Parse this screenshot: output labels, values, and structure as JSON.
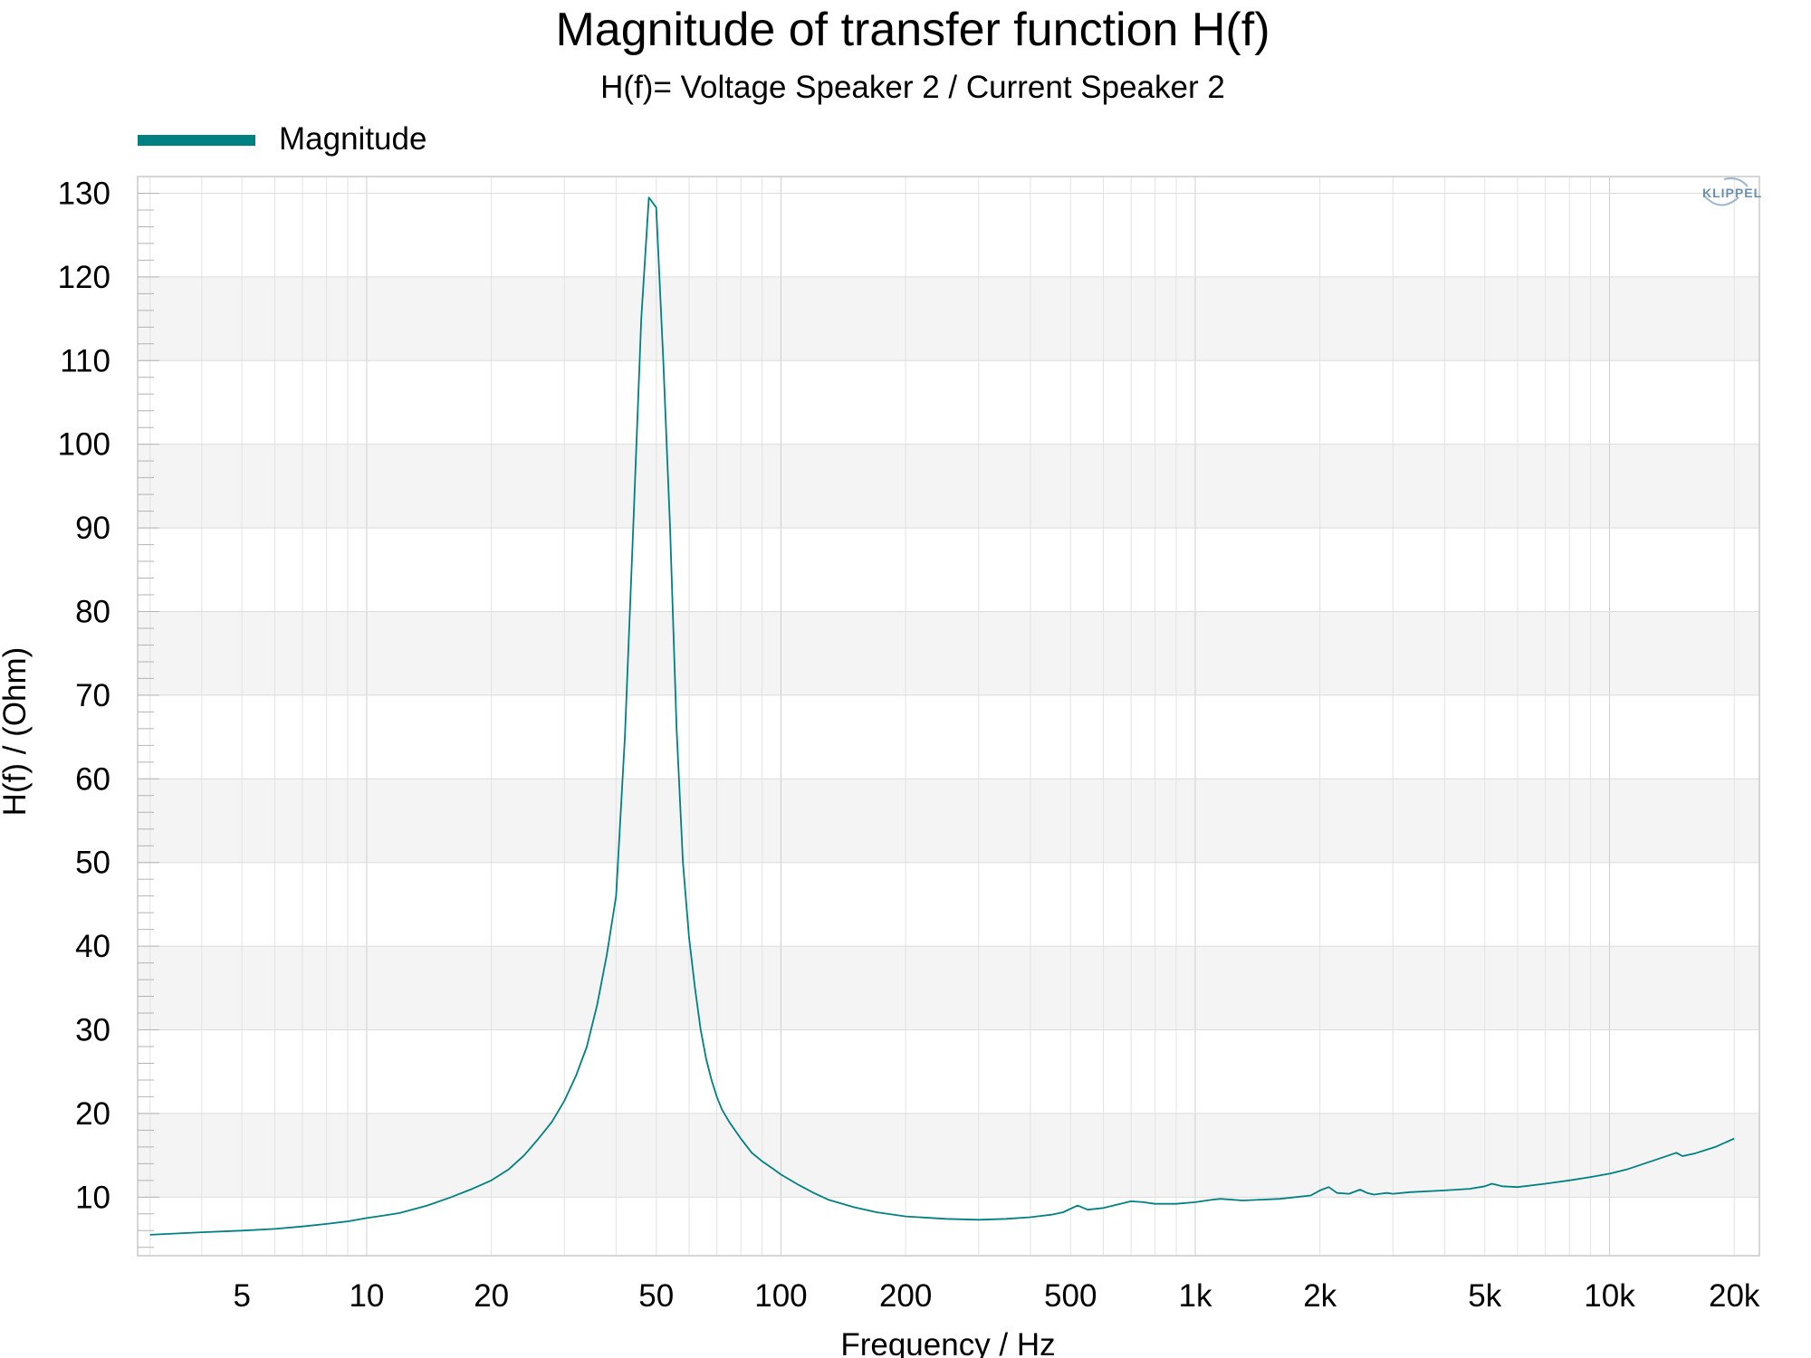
{
  "chart_data": {
    "type": "line",
    "title": "Magnitude of transfer function H(f)",
    "subtitle": "H(f)= Voltage Speaker 2 / Current Speaker 2",
    "xlabel": "Frequency / Hz",
    "ylabel": "H(f) / (Ohm)",
    "x_scale": "log",
    "xlim": [
      2.8,
      23000
    ],
    "ylim": [
      3,
      132
    ],
    "grid": true,
    "legend_position": "top-left",
    "x_ticks": [
      {
        "value": 5,
        "label": "5"
      },
      {
        "value": 10,
        "label": "10"
      },
      {
        "value": 20,
        "label": "20"
      },
      {
        "value": 50,
        "label": "50"
      },
      {
        "value": 100,
        "label": "100"
      },
      {
        "value": 200,
        "label": "200"
      },
      {
        "value": 500,
        "label": "500"
      },
      {
        "value": 1000,
        "label": "1k"
      },
      {
        "value": 2000,
        "label": "2k"
      },
      {
        "value": 5000,
        "label": "5k"
      },
      {
        "value": 10000,
        "label": "10k"
      },
      {
        "value": 20000,
        "label": "20k"
      }
    ],
    "y_ticks": [
      10,
      20,
      30,
      40,
      50,
      60,
      70,
      80,
      90,
      100,
      110,
      120,
      130
    ],
    "series": [
      {
        "name": "Magnitude",
        "color": "#008080",
        "x": [
          3,
          4,
          5,
          6,
          7,
          8,
          9,
          10,
          11,
          12,
          14,
          16,
          18,
          20,
          22,
          24,
          26,
          28,
          30,
          32,
          34,
          36,
          38,
          40,
          42,
          44,
          46,
          48,
          50,
          52,
          54,
          56,
          58,
          60,
          62,
          64,
          66,
          68,
          70,
          72,
          75,
          80,
          85,
          90,
          95,
          100,
          110,
          120,
          130,
          150,
          170,
          200,
          250,
          300,
          350,
          400,
          450,
          480,
          520,
          550,
          600,
          700,
          750,
          800,
          900,
          1000,
          1100,
          1150,
          1300,
          1600,
          1900,
          2000,
          2100,
          2200,
          2350,
          2500,
          2600,
          2700,
          2900,
          3000,
          3300,
          4000,
          4600,
          5000,
          5200,
          5500,
          6000,
          7000,
          8000,
          9000,
          10000,
          11000,
          13000,
          14500,
          15000,
          16000,
          18000,
          20000
        ],
        "values": [
          5.5,
          5.8,
          6.0,
          6.2,
          6.5,
          6.8,
          7.1,
          7.5,
          7.8,
          8.1,
          9.0,
          10.0,
          11.0,
          12.0,
          13.3,
          15.0,
          17.0,
          19.0,
          21.5,
          24.5,
          28.0,
          33.0,
          39.0,
          46.0,
          65.0,
          90.0,
          115.0,
          129.5,
          128.3,
          110.0,
          90.0,
          66.0,
          50.0,
          41.0,
          35.0,
          30.0,
          26.5,
          24.0,
          22.0,
          20.5,
          19.0,
          17.0,
          15.3,
          14.3,
          13.5,
          12.7,
          11.5,
          10.5,
          9.7,
          8.8,
          8.2,
          7.7,
          7.4,
          7.3,
          7.4,
          7.6,
          7.9,
          8.2,
          9.0,
          8.5,
          8.7,
          9.5,
          9.4,
          9.2,
          9.2,
          9.4,
          9.7,
          9.8,
          9.6,
          9.8,
          10.2,
          10.8,
          11.2,
          10.5,
          10.4,
          10.9,
          10.5,
          10.3,
          10.5,
          10.4,
          10.6,
          10.8,
          11.0,
          11.3,
          11.6,
          11.3,
          11.2,
          11.6,
          12.0,
          12.4,
          12.8,
          13.3,
          14.5,
          15.3,
          14.9,
          15.2,
          16.0,
          17.0
        ]
      }
    ]
  },
  "logo": {
    "text": "KLIPPEL"
  }
}
